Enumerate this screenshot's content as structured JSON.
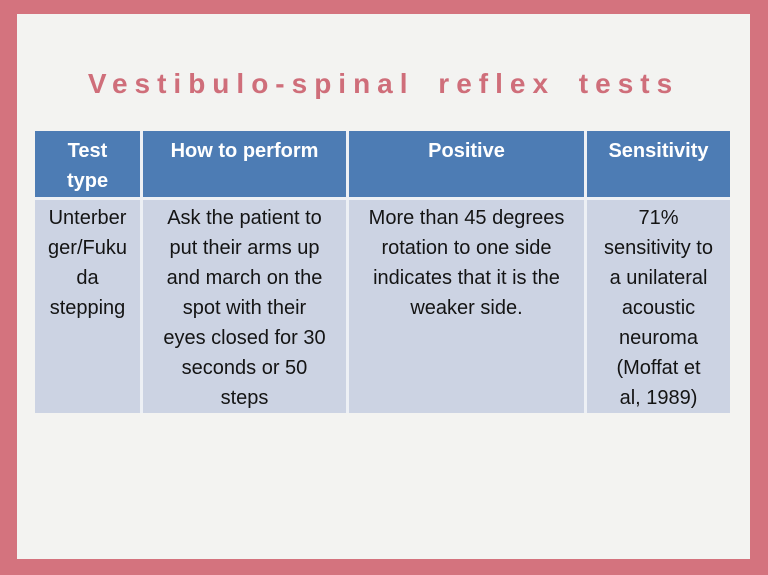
{
  "slide": {
    "title": "Vestibulo-spinal reflex tests",
    "table": {
      "headers": [
        "Test\ntype",
        "How to perform",
        "Positive",
        "Sensitivity"
      ],
      "rows": [
        {
          "cells": [
            "Unterber\nger/Fuku\nda\nstepping",
            "Ask the patient to\nput their arms up\nand march on the\nspot with their\neyes closed for 30\nseconds or 50\nsteps",
            "More than 45 degrees\nrotation to one side\nindicates that it is the\nweaker side.",
            "71%\nsensitivity to\na unilateral\nacoustic\nneuroma\n(Moffat et\nal, 1989)"
          ]
        }
      ]
    },
    "colors": {
      "frame": "#d4737e",
      "canvas_background": "#f3f3f1",
      "title_text": "#cf6e7a",
      "header_background": "#4d7cb4",
      "header_text": "#ffffff",
      "row_background": "#ccd3e3",
      "body_text": "#141414",
      "grid_line": "#edf0f5"
    }
  }
}
